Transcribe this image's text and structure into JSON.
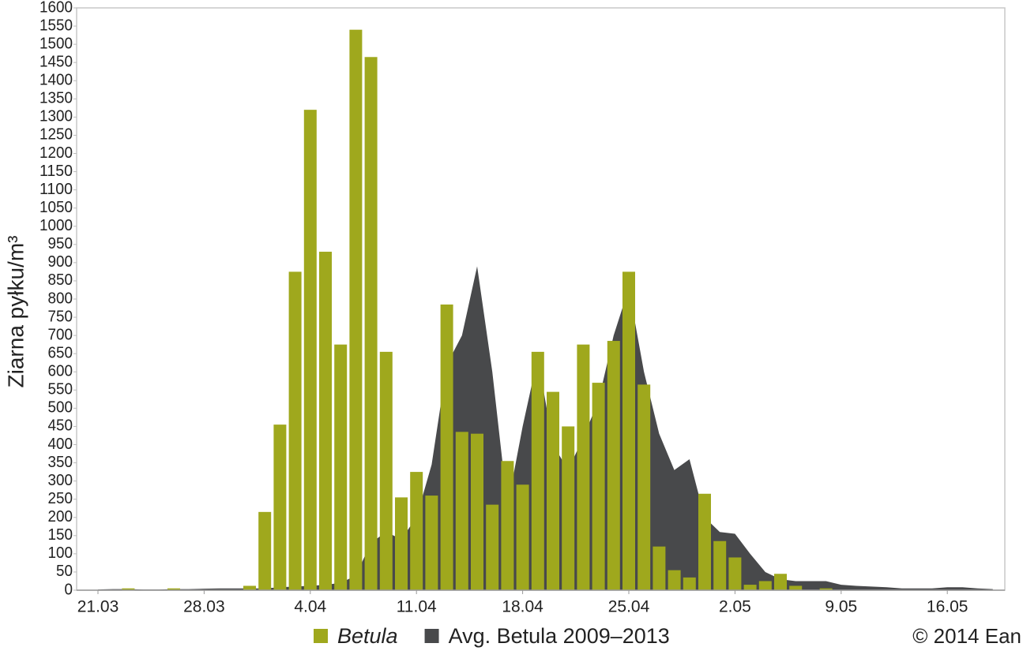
{
  "chart_data": {
    "type": "bar",
    "y_label": "Ziarna pyłku/m³",
    "credit": "© 2014 Ean",
    "categories": [
      "21.03",
      null,
      null,
      null,
      null,
      null,
      null,
      "28.03",
      null,
      null,
      null,
      null,
      null,
      null,
      "4.04",
      null,
      null,
      null,
      null,
      null,
      null,
      "11.04",
      null,
      null,
      null,
      null,
      null,
      null,
      "18.04",
      null,
      null,
      null,
      null,
      null,
      null,
      "25.04",
      null,
      null,
      null,
      null,
      null,
      null,
      "2.05",
      null,
      null,
      null,
      null,
      null,
      null,
      "9.05",
      null,
      null,
      null,
      null,
      null,
      null,
      "16.05",
      null,
      null,
      null
    ],
    "series": [
      {
        "name": "Betula",
        "type": "bar",
        "color": "#9fa81d",
        "values": [
          0,
          0,
          5,
          0,
          0,
          5,
          0,
          0,
          0,
          0,
          12,
          215,
          455,
          875,
          1320,
          930,
          675,
          1540,
          1465,
          655,
          255,
          325,
          260,
          785,
          435,
          430,
          235,
          355,
          290,
          655,
          545,
          450,
          675,
          570,
          685,
          875,
          565,
          120,
          55,
          35,
          265,
          135,
          90,
          15,
          25,
          45,
          12,
          0,
          5,
          0,
          0,
          0,
          0,
          0,
          0,
          0,
          0,
          0,
          0,
          0
        ]
      },
      {
        "name": "Avg. Betula 2009–2013",
        "type": "area",
        "color": "#48494b",
        "values": [
          2,
          3,
          3,
          2,
          2,
          3,
          3,
          4,
          5,
          5,
          5,
          5,
          8,
          10,
          12,
          15,
          20,
          40,
          130,
          160,
          140,
          200,
          345,
          620,
          700,
          890,
          600,
          230,
          450,
          640,
          400,
          330,
          420,
          520,
          700,
          830,
          600,
          430,
          330,
          360,
          200,
          160,
          155,
          100,
          50,
          30,
          25,
          25,
          25,
          15,
          12,
          10,
          8,
          5,
          5,
          5,
          8,
          8,
          5,
          3
        ]
      }
    ],
    "ylim": [
      0,
      1600
    ],
    "yticks": [
      0,
      50,
      100,
      150,
      200,
      250,
      300,
      350,
      400,
      450,
      500,
      550,
      600,
      650,
      700,
      750,
      800,
      850,
      900,
      950,
      1000,
      1050,
      1100,
      1150,
      1200,
      1250,
      1300,
      1350,
      1400,
      1450,
      1500,
      1550,
      1600
    ]
  }
}
